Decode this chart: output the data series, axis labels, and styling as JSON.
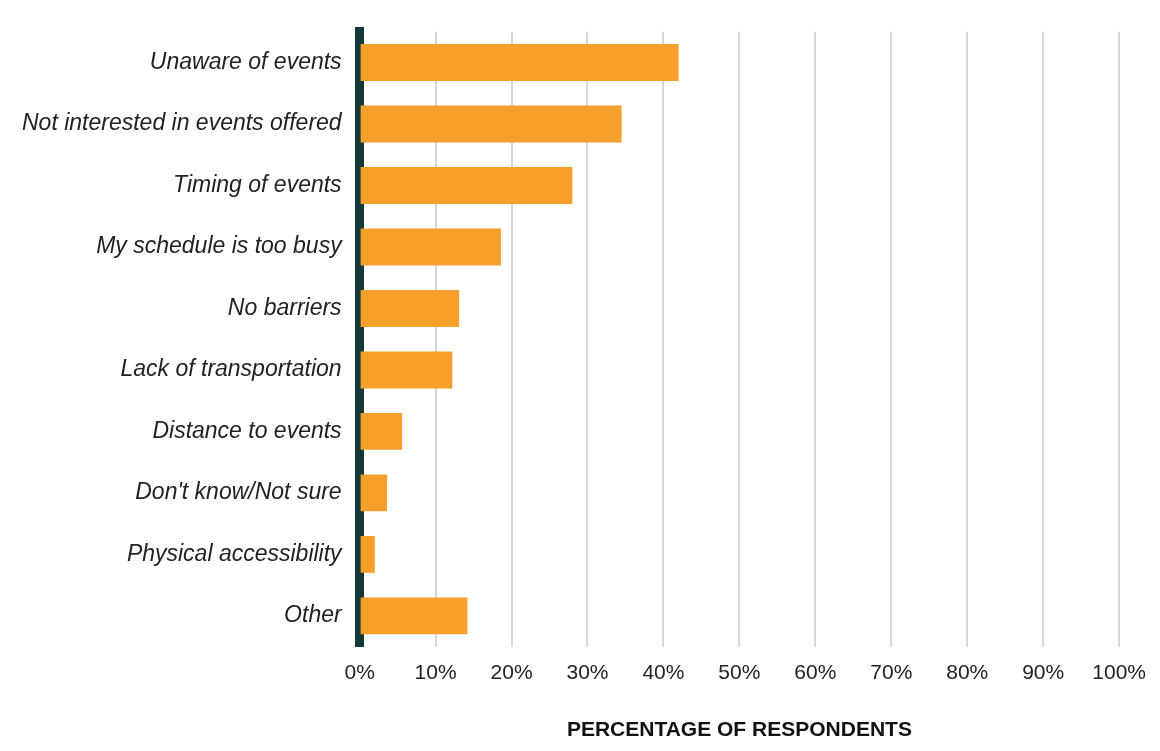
{
  "chart_data": {
    "type": "bar",
    "orientation": "horizontal",
    "xlabel": "PERCENTAGE OF RESPONDENTS",
    "categories": [
      "Unaware of events",
      "Not interested in events offered",
      "Timing of events",
      "My schedule is too busy",
      "No barriers",
      "Lack of transportation",
      "Distance to events",
      "Don't know/Not sure",
      "Physical accessibility",
      "Other"
    ],
    "values": [
      42,
      34.5,
      28,
      18.6,
      13.1,
      12.2,
      5.6,
      3.6,
      2,
      14.2
    ],
    "color": "#f6a02b",
    "xlim": [
      0,
      100
    ],
    "xticks": [
      {
        "value": 0,
        "label": "0%"
      },
      {
        "value": 10,
        "label": "10%"
      },
      {
        "value": 20,
        "label": "20%"
      },
      {
        "value": 30,
        "label": "30%"
      },
      {
        "value": 40,
        "label": "40%"
      },
      {
        "value": 50,
        "label": "50%"
      },
      {
        "value": 60,
        "label": "60%"
      },
      {
        "value": 70,
        "label": "70%"
      },
      {
        "value": 80,
        "label": "80%"
      },
      {
        "value": 90,
        "label": "90%"
      },
      {
        "value": 100,
        "label": "100%"
      }
    ],
    "grid": "x"
  }
}
